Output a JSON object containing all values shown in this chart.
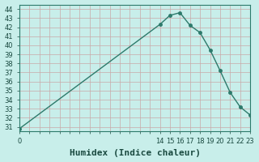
{
  "x": [
    0,
    14,
    15,
    16,
    17,
    18,
    19,
    20,
    21,
    22,
    23
  ],
  "y": [
    30.8,
    42.3,
    43.3,
    43.6,
    42.2,
    41.4,
    39.5,
    37.2,
    34.8,
    33.2,
    32.3
  ],
  "line_color": "#2d7a6b",
  "marker_color": "#2d7a6b",
  "bg_color": "#c8eeea",
  "grid_h_color": "#c8a8a8",
  "grid_v_color": "#c8a8a8",
  "xlabel": "Humidex (Indice chaleur)",
  "xlabel_fontsize": 8,
  "ylabel_ticks": [
    31,
    32,
    33,
    34,
    35,
    36,
    37,
    38,
    39,
    40,
    41,
    42,
    43,
    44
  ],
  "xlim": [
    0,
    23
  ],
  "ylim": [
    30.5,
    44.5
  ],
  "xticks_labeled": [
    0,
    14,
    15,
    16,
    17,
    18,
    19,
    20,
    21,
    22,
    23
  ],
  "tick_fontsize": 6,
  "line_width": 1.0,
  "marker_size": 2.5
}
